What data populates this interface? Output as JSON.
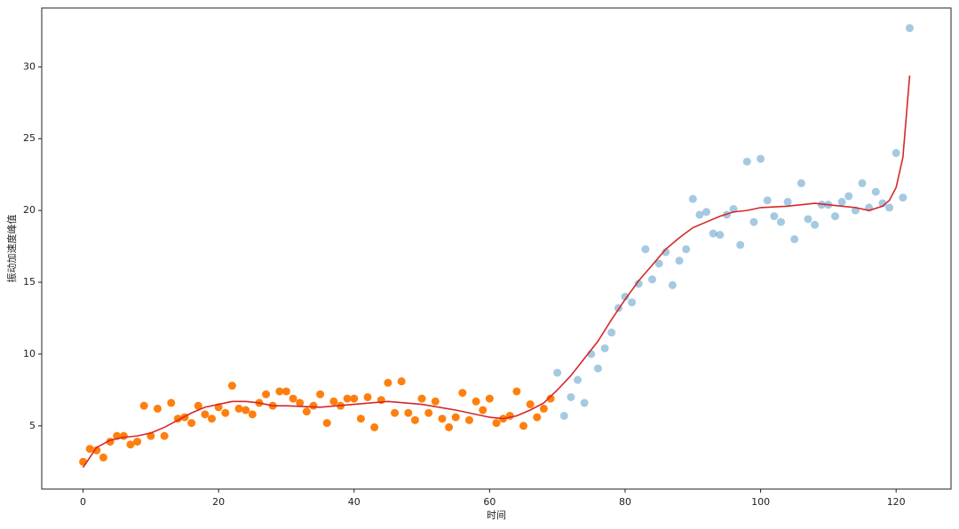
{
  "chart_data": {
    "type": "scatter",
    "xlabel": "时间",
    "ylabel": "振动加速度峰值",
    "xlim": [
      -6.1,
      128.1
    ],
    "ylim": [
      0.6,
      34.1
    ],
    "xticks": [
      0,
      20,
      40,
      60,
      80,
      100,
      120
    ],
    "yticks": [
      5,
      10,
      15,
      20,
      25,
      30
    ],
    "series": [
      {
        "type": "scatter",
        "color": "#ff7f0e",
        "alpha": 1,
        "x": [
          0,
          1,
          2,
          3,
          4,
          5,
          6,
          7,
          8,
          9,
          10,
          11,
          12,
          13,
          14,
          15,
          16,
          17,
          18,
          19,
          20,
          21,
          22,
          23,
          24,
          25,
          26,
          27,
          28,
          29,
          30,
          31,
          32,
          33,
          34,
          35,
          36,
          37,
          38,
          39,
          40,
          41,
          42,
          43,
          44,
          45,
          46,
          47,
          48,
          49,
          50,
          51,
          52,
          53,
          54,
          55,
          56,
          57,
          58,
          59,
          60,
          61,
          62,
          63,
          64,
          65,
          66,
          67,
          68,
          69
        ],
        "values": [
          2.5,
          3.4,
          3.3,
          2.8,
          3.9,
          4.3,
          4.3,
          3.7,
          3.9,
          6.4,
          4.3,
          6.2,
          4.3,
          6.6,
          5.5,
          5.6,
          5.2,
          6.4,
          5.8,
          5.5,
          6.3,
          5.9,
          7.8,
          6.2,
          6.1,
          5.8,
          6.6,
          7.2,
          6.4,
          7.4,
          7.4,
          6.9,
          6.6,
          6.0,
          6.4,
          7.2,
          5.2,
          6.7,
          6.4,
          6.9,
          6.9,
          5.5,
          7.0,
          4.9,
          6.8,
          8.0,
          5.9,
          8.1,
          5.9,
          5.4,
          6.9,
          5.9,
          6.7,
          5.5,
          4.9,
          5.6,
          7.3,
          5.4,
          6.7,
          6.1,
          6.9,
          5.2,
          5.5,
          5.7,
          7.4,
          5.0,
          6.5,
          5.6,
          6.2,
          6.9
        ]
      },
      {
        "type": "scatter",
        "color": "#1f77b4",
        "alpha": 0.4,
        "x": [
          70,
          71,
          72,
          73,
          74,
          75,
          76,
          77,
          78,
          79,
          80,
          81,
          82,
          83,
          84,
          85,
          86,
          87,
          88,
          89,
          90,
          91,
          92,
          93,
          94,
          95,
          96,
          97,
          98,
          99,
          100,
          101,
          102,
          103,
          104,
          105,
          106,
          107,
          108,
          109,
          110,
          111,
          112,
          113,
          114,
          115,
          116,
          117,
          118,
          119,
          120,
          121,
          122
        ],
        "values": [
          8.7,
          5.7,
          7.0,
          8.2,
          6.6,
          10.0,
          9.0,
          10.4,
          11.5,
          13.2,
          14.0,
          13.6,
          14.9,
          17.3,
          15.2,
          16.3,
          17.1,
          14.8,
          16.5,
          17.3,
          20.8,
          19.7,
          19.9,
          18.4,
          18.3,
          19.7,
          20.1,
          17.6,
          23.4,
          19.2,
          23.6,
          20.7,
          19.6,
          19.2,
          20.6,
          18.0,
          21.9,
          19.4,
          19.0,
          20.4,
          20.4,
          19.6,
          20.6,
          21.0,
          20.0,
          21.9,
          20.2,
          21.3,
          20.5,
          20.2,
          24.0,
          20.9,
          32.7
        ]
      },
      {
        "type": "line",
        "color": "#d62728",
        "x": [
          0,
          2,
          4,
          6,
          8,
          10,
          12,
          14,
          16,
          18,
          20,
          22,
          24,
          26,
          28,
          30,
          35,
          40,
          45,
          50,
          55,
          60,
          62,
          64,
          66,
          68,
          70,
          72,
          74,
          76,
          78,
          80,
          82,
          84,
          86,
          88,
          90,
          92,
          94,
          96,
          98,
          100,
          104,
          108,
          112,
          114,
          116,
          118,
          119,
          120,
          121,
          122
        ],
        "values": [
          2.1,
          3.5,
          4.0,
          4.2,
          4.3,
          4.5,
          4.9,
          5.4,
          5.9,
          6.3,
          6.5,
          6.7,
          6.7,
          6.6,
          6.4,
          6.4,
          6.3,
          6.5,
          6.7,
          6.5,
          6.1,
          5.6,
          5.5,
          5.7,
          6.1,
          6.6,
          7.5,
          8.5,
          9.7,
          10.9,
          12.4,
          13.8,
          15.1,
          16.2,
          17.3,
          18.1,
          18.8,
          19.2,
          19.6,
          19.9,
          20.0,
          20.2,
          20.3,
          20.5,
          20.3,
          20.2,
          20.0,
          20.3,
          20.7,
          21.6,
          23.7,
          29.4
        ]
      }
    ]
  }
}
